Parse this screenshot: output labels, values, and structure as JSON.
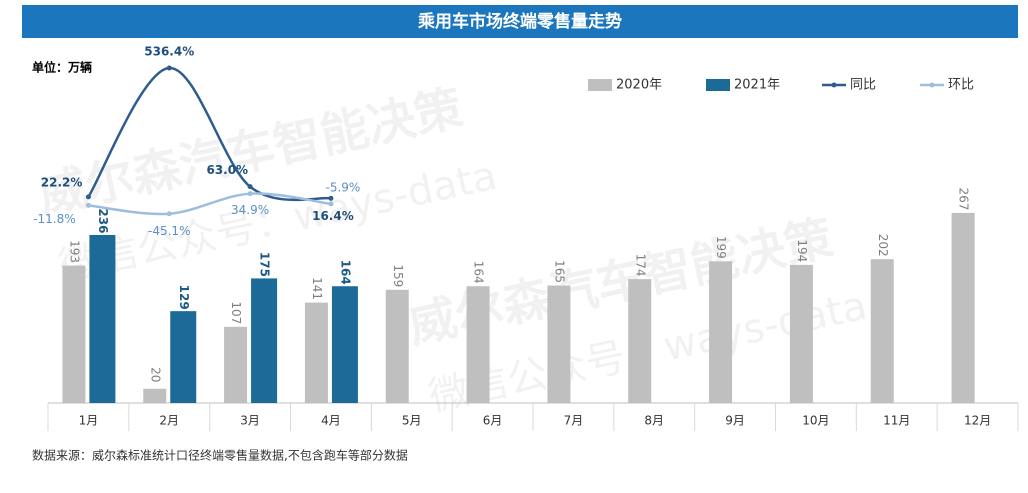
{
  "chart_data": {
    "type": "bar",
    "title": "乘用车市场终端零售量走势",
    "unit_label": "单位：万辆",
    "source": "数据来源：威尔森标准统计口径终端零售量数据,不包含跑车等部分数据",
    "watermarks": [
      "威尔森汽车智能决策",
      "微信公众号：ways-data"
    ],
    "categories": [
      "1月",
      "2月",
      "3月",
      "4月",
      "5月",
      "6月",
      "7月",
      "8月",
      "9月",
      "10月",
      "11月",
      "12月"
    ],
    "ylim": [
      0,
      500
    ],
    "y2lim": [
      -800,
      620
    ],
    "series": [
      {
        "name": "2020年",
        "type": "bar",
        "color": "#bfbfbf",
        "values": [
          193,
          20,
          107,
          141,
          159,
          164,
          165,
          174,
          199,
          194,
          202,
          267
        ]
      },
      {
        "name": "2021年",
        "type": "bar",
        "color": "#1c6a97",
        "values": [
          236,
          129,
          175,
          164,
          null,
          null,
          null,
          null,
          null,
          null,
          null,
          null
        ]
      },
      {
        "name": "同比",
        "type": "line",
        "axis": "y2",
        "color": "#2f5b8e",
        "values": [
          22.2,
          536.4,
          63.0,
          16.4,
          null,
          null,
          null,
          null,
          null,
          null,
          null,
          null
        ],
        "value_labels": [
          "22.2%",
          "536.4%",
          "63.0%",
          "16.4%",
          null,
          null,
          null,
          null,
          null,
          null,
          null,
          null
        ]
      },
      {
        "name": "环比",
        "type": "line",
        "axis": "y2",
        "color": "#9dbde0",
        "values": [
          -11.8,
          -45.1,
          34.9,
          -5.9,
          null,
          null,
          null,
          null,
          null,
          null,
          null,
          null
        ],
        "value_labels": [
          "-11.8%",
          "-45.1%",
          "34.9%",
          "-5.9%",
          null,
          null,
          null,
          null,
          null,
          null,
          null,
          null
        ]
      }
    ],
    "legend": "top-right",
    "grid": false
  }
}
